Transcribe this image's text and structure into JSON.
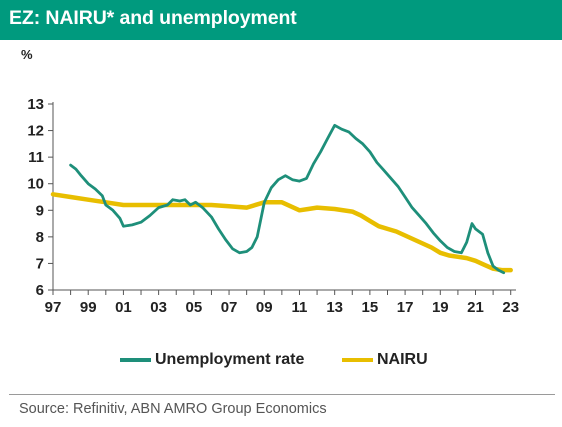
{
  "header": {
    "title": "EZ: NAIRU* and unemployment",
    "background": "#009a7e"
  },
  "unit_label": "%",
  "legend": [
    {
      "label": "Unemployment rate",
      "color": "#1e8f7a"
    },
    {
      "label": "NAIRU",
      "color": "#e8be00"
    }
  ],
  "source": "Source: Refinitiv, ABN AMRO Group Economics",
  "chart_data": {
    "type": "line",
    "title": "EZ: NAIRU* and unemployment",
    "ylabel": "%",
    "xlabel": "",
    "xlim": [
      1997,
      2023.3
    ],
    "ylim": [
      6,
      13
    ],
    "yticks": [
      6,
      7,
      8,
      9,
      10,
      11,
      12,
      13
    ],
    "xtick_values": [
      1997,
      1999,
      2001,
      2003,
      2005,
      2007,
      2009,
      2011,
      2013,
      2015,
      2017,
      2019,
      2021,
      2023
    ],
    "xtick_labels": [
      "97",
      "99",
      "01",
      "03",
      "05",
      "07",
      "09",
      "11",
      "13",
      "15",
      "17",
      "19",
      "21",
      "23"
    ],
    "grid": false,
    "legend_position": "bottom",
    "series": [
      {
        "name": "Unemployment rate",
        "color": "#1e8f7a",
        "points": [
          [
            1998.0,
            10.7
          ],
          [
            1998.3,
            10.55
          ],
          [
            1998.6,
            10.3
          ],
          [
            1999.0,
            10.0
          ],
          [
            1999.4,
            9.8
          ],
          [
            1999.8,
            9.55
          ],
          [
            2000.0,
            9.2
          ],
          [
            2000.4,
            9.0
          ],
          [
            2000.8,
            8.7
          ],
          [
            2001.0,
            8.4
          ],
          [
            2001.5,
            8.45
          ],
          [
            2002.0,
            8.55
          ],
          [
            2002.5,
            8.8
          ],
          [
            2003.0,
            9.1
          ],
          [
            2003.5,
            9.2
          ],
          [
            2003.8,
            9.4
          ],
          [
            2004.2,
            9.35
          ],
          [
            2004.5,
            9.4
          ],
          [
            2004.8,
            9.2
          ],
          [
            2005.1,
            9.3
          ],
          [
            2005.5,
            9.1
          ],
          [
            2006.0,
            8.75
          ],
          [
            2006.4,
            8.3
          ],
          [
            2006.8,
            7.9
          ],
          [
            2007.2,
            7.55
          ],
          [
            2007.6,
            7.4
          ],
          [
            2008.0,
            7.45
          ],
          [
            2008.3,
            7.6
          ],
          [
            2008.6,
            8.0
          ],
          [
            2009.0,
            9.3
          ],
          [
            2009.4,
            9.85
          ],
          [
            2009.8,
            10.15
          ],
          [
            2010.2,
            10.3
          ],
          [
            2010.6,
            10.15
          ],
          [
            2011.0,
            10.1
          ],
          [
            2011.4,
            10.2
          ],
          [
            2011.8,
            10.75
          ],
          [
            2012.2,
            11.2
          ],
          [
            2012.6,
            11.7
          ],
          [
            2013.0,
            12.2
          ],
          [
            2013.4,
            12.05
          ],
          [
            2013.8,
            11.95
          ],
          [
            2014.2,
            11.7
          ],
          [
            2014.6,
            11.5
          ],
          [
            2015.0,
            11.2
          ],
          [
            2015.4,
            10.8
          ],
          [
            2015.8,
            10.5
          ],
          [
            2016.2,
            10.2
          ],
          [
            2016.6,
            9.9
          ],
          [
            2017.0,
            9.5
          ],
          [
            2017.4,
            9.1
          ],
          [
            2017.8,
            8.8
          ],
          [
            2018.2,
            8.5
          ],
          [
            2018.6,
            8.15
          ],
          [
            2019.0,
            7.85
          ],
          [
            2019.4,
            7.6
          ],
          [
            2019.8,
            7.45
          ],
          [
            2020.2,
            7.4
          ],
          [
            2020.5,
            7.8
          ],
          [
            2020.8,
            8.5
          ],
          [
            2021.0,
            8.3
          ],
          [
            2021.4,
            8.1
          ],
          [
            2021.7,
            7.4
          ],
          [
            2022.0,
            6.9
          ],
          [
            2022.3,
            6.75
          ],
          [
            2022.6,
            6.65
          ]
        ]
      },
      {
        "name": "NAIRU",
        "color": "#e8be00",
        "points": [
          [
            1997.0,
            9.6
          ],
          [
            1998.0,
            9.5
          ],
          [
            1999.0,
            9.4
          ],
          [
            2000.0,
            9.3
          ],
          [
            2001.0,
            9.2
          ],
          [
            2002.0,
            9.2
          ],
          [
            2003.0,
            9.2
          ],
          [
            2004.0,
            9.2
          ],
          [
            2005.0,
            9.2
          ],
          [
            2006.0,
            9.2
          ],
          [
            2007.0,
            9.15
          ],
          [
            2008.0,
            9.1
          ],
          [
            2009.0,
            9.3
          ],
          [
            2010.0,
            9.3
          ],
          [
            2010.5,
            9.15
          ],
          [
            2011.0,
            9.0
          ],
          [
            2011.5,
            9.05
          ],
          [
            2012.0,
            9.1
          ],
          [
            2013.0,
            9.05
          ],
          [
            2014.0,
            8.95
          ],
          [
            2014.5,
            8.8
          ],
          [
            2015.0,
            8.6
          ],
          [
            2015.5,
            8.4
          ],
          [
            2016.0,
            8.3
          ],
          [
            2016.5,
            8.2
          ],
          [
            2017.0,
            8.05
          ],
          [
            2017.5,
            7.9
          ],
          [
            2018.0,
            7.75
          ],
          [
            2018.5,
            7.6
          ],
          [
            2019.0,
            7.4
          ],
          [
            2019.5,
            7.3
          ],
          [
            2020.0,
            7.25
          ],
          [
            2020.5,
            7.2
          ],
          [
            2021.0,
            7.1
          ],
          [
            2021.5,
            6.95
          ],
          [
            2022.0,
            6.8
          ],
          [
            2022.5,
            6.75
          ],
          [
            2023.0,
            6.75
          ]
        ]
      }
    ]
  }
}
